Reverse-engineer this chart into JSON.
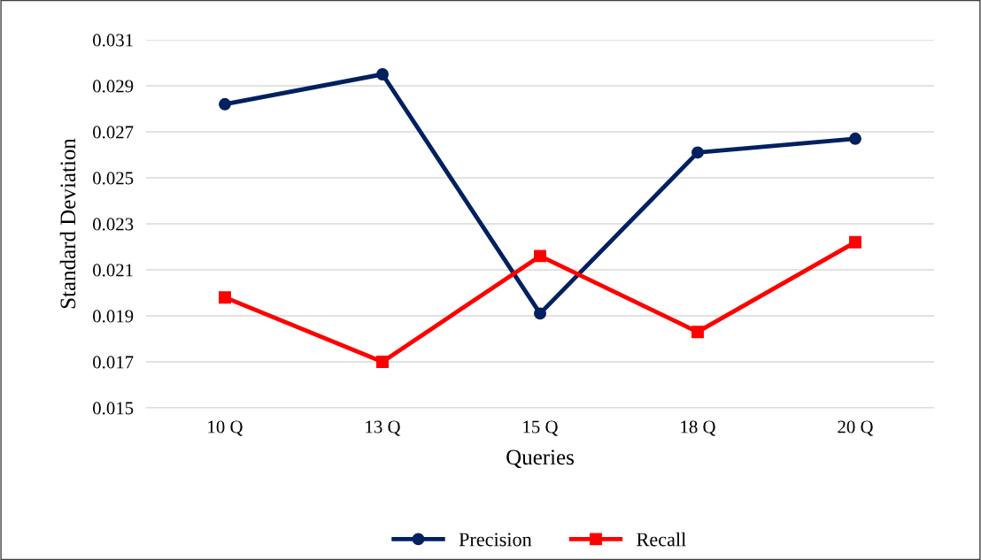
{
  "chart_data": {
    "type": "line",
    "xlabel": "Queries",
    "ylabel": "Standard Deviation",
    "categories": [
      "10 Q",
      "13 Q",
      "15 Q",
      "18 Q",
      "20 Q"
    ],
    "series": [
      {
        "name": "Precision",
        "color": "#002060",
        "marker": "circle",
        "values": [
          0.0282,
          0.0295,
          0.0191,
          0.0261,
          0.0267
        ]
      },
      {
        "name": "Recall",
        "color": "#ff0000",
        "marker": "square",
        "values": [
          0.0198,
          0.017,
          0.0216,
          0.0183,
          0.0222
        ]
      }
    ],
    "ylim": [
      0.015,
      0.031
    ],
    "yticks": [
      {
        "value": 0.015,
        "label": "0.015"
      },
      {
        "value": 0.017,
        "label": "0.017"
      },
      {
        "value": 0.019,
        "label": "0.019"
      },
      {
        "value": 0.021,
        "label": "0.021"
      },
      {
        "value": 0.023,
        "label": "0.023"
      },
      {
        "value": 0.025,
        "label": "0.025"
      },
      {
        "value": 0.027,
        "label": "0.027"
      },
      {
        "value": 0.029,
        "label": "0.029"
      },
      {
        "value": 0.031,
        "label": "0.031"
      }
    ],
    "grid": "y",
    "legend": "bottom",
    "line_style": "solid"
  }
}
